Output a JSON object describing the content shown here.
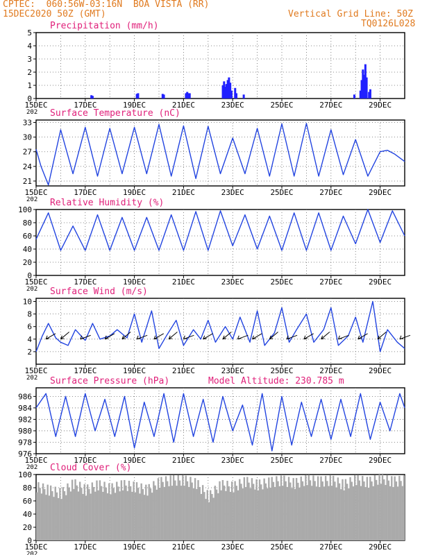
{
  "header": {
    "line1": "CPTEC:  060:56W-03:16N  BOA VISTA (RR)",
    "line2": "15DEC2020 50Z (GMT)",
    "grid_note": "Vertical Grid Line: 50Z",
    "code": "TQ0126L028"
  },
  "x_ticks": [
    "15DEC",
    "17DEC",
    "19DEC",
    "21DEC",
    "23DEC",
    "25DEC",
    "27DEC",
    "29DEC"
  ],
  "year_fragment": "202",
  "chart_data": [
    {
      "type": "bar",
      "title": "Precipitation (mm/h)",
      "ylim": [
        0,
        5
      ],
      "yticks": [
        "0",
        "1",
        "2",
        "3",
        "4",
        "5"
      ],
      "x_range_days": [
        0,
        15
      ],
      "color": "#2020ff",
      "series": [
        {
          "name": "precipitation",
          "x": [
            2.25,
            2.3,
            4.1,
            4.15,
            5.15,
            5.2,
            6.1,
            6.15,
            6.2,
            6.25,
            7.6,
            7.65,
            7.7,
            7.75,
            7.8,
            7.85,
            7.9,
            7.95,
            8.1,
            8.15,
            8.45,
            12.95,
            13.2,
            13.25,
            13.3,
            13.35,
            13.4,
            13.45,
            13.55,
            13.6
          ],
          "values": [
            0.25,
            0.2,
            0.35,
            0.4,
            0.35,
            0.3,
            0.4,
            0.5,
            0.4,
            0.4,
            1.0,
            1.3,
            0.9,
            1.1,
            1.4,
            1.6,
            1.2,
            0.6,
            0.8,
            0.4,
            0.3,
            0.3,
            0.6,
            1.4,
            2.2,
            1.8,
            2.6,
            1.6,
            0.5,
            0.7
          ]
        }
      ]
    },
    {
      "type": "line",
      "title": "Surface Temperature (nC)",
      "ylim": [
        20,
        33.5
      ],
      "yticks": [
        "21",
        "24",
        "27",
        "30",
        "33"
      ],
      "x_range_days": [
        0,
        15
      ],
      "color": "#2244e0",
      "series": [
        {
          "name": "temperature",
          "x": [
            0,
            0.2,
            0.5,
            1.0,
            1.5,
            2.0,
            2.5,
            3.0,
            3.5,
            4.0,
            4.5,
            5.0,
            5.5,
            6.0,
            6.5,
            7.0,
            7.5,
            8.0,
            8.5,
            9.0,
            9.5,
            10.0,
            10.5,
            11.0,
            11.5,
            12.0,
            12.5,
            13.0,
            13.5,
            14.0,
            14.3,
            14.6,
            15.0
          ],
          "values": [
            27.5,
            24,
            20.2,
            31.5,
            22.5,
            32.0,
            22.0,
            31.8,
            22.5,
            32.0,
            22.5,
            32.6,
            22.0,
            32.3,
            21.5,
            32.2,
            22.5,
            29.8,
            22.5,
            31.8,
            22.0,
            32.7,
            22.0,
            32.8,
            22.0,
            31.5,
            22.3,
            29.5,
            22.0,
            27.0,
            27.3,
            26.5,
            25.0
          ]
        }
      ]
    },
    {
      "type": "line",
      "title": "Relative Humidity (%)",
      "ylim": [
        0,
        100
      ],
      "yticks": [
        "0",
        "20",
        "40",
        "60",
        "80",
        "100"
      ],
      "x_range_days": [
        0,
        15
      ],
      "color": "#2244e0",
      "series": [
        {
          "name": "humidity",
          "x": [
            0,
            0.5,
            1.0,
            1.5,
            2.0,
            2.5,
            3.0,
            3.5,
            4.0,
            4.5,
            5.0,
            5.5,
            6.0,
            6.5,
            7.0,
            7.5,
            8.0,
            8.5,
            9.0,
            9.5,
            10.0,
            10.5,
            11.0,
            11.5,
            12.0,
            12.5,
            13.0,
            13.5,
            14.0,
            14.5,
            15.0
          ],
          "values": [
            55,
            95,
            38,
            75,
            38,
            92,
            38,
            88,
            38,
            88,
            38,
            92,
            38,
            97,
            38,
            98,
            45,
            92,
            40,
            90,
            38,
            95,
            38,
            95,
            38,
            90,
            48,
            100,
            50,
            98,
            60
          ]
        }
      ]
    },
    {
      "type": "line",
      "title": "Surface Wind (m/s)",
      "ylim": [
        0,
        10.5
      ],
      "yticks": [
        "2",
        "4",
        "6",
        "8",
        "10"
      ],
      "x_range_days": [
        0,
        15
      ],
      "color": "#2244e0",
      "series": [
        {
          "name": "wind_speed",
          "x": [
            0,
            0.25,
            0.5,
            0.8,
            1.0,
            1.3,
            1.6,
            2.0,
            2.3,
            2.6,
            3.0,
            3.3,
            3.7,
            4.0,
            4.3,
            4.7,
            5.0,
            5.3,
            5.7,
            6.0,
            6.4,
            6.7,
            7.0,
            7.3,
            7.7,
            8.0,
            8.3,
            8.7,
            9.0,
            9.3,
            9.7,
            10.0,
            10.3,
            10.6,
            11.0,
            11.3,
            11.7,
            12.0,
            12.3,
            12.7,
            13.0,
            13.3,
            13.7,
            14.0,
            14.3,
            14.7,
            15.0
          ],
          "values": [
            2,
            4.5,
            6.5,
            4.2,
            3.5,
            3.0,
            5.5,
            3.8,
            6.5,
            4.0,
            4.5,
            5.5,
            4.2,
            8.0,
            3.5,
            8.5,
            2.5,
            4.5,
            7.0,
            3.0,
            5.5,
            4.0,
            7.0,
            3.5,
            6.0,
            4.0,
            7.5,
            3.5,
            8.5,
            3.0,
            5.0,
            9.0,
            3.5,
            5.5,
            8.0,
            3.5,
            5.5,
            9.0,
            3.0,
            4.5,
            7.5,
            3.5,
            10.0,
            2.0,
            5.5,
            3.5,
            2.5
          ]
        },
        {
          "name": "wind_direction_arrows",
          "x": [
            0.4,
            1.0,
            1.8,
            2.8,
            3.5,
            4.1,
            4.8,
            5.4,
            6.0,
            6.8,
            7.6,
            8.2,
            8.8,
            9.5,
            10.2,
            10.9,
            11.6,
            12.3,
            13.1,
            13.9,
            14.8
          ],
          "values": [
            4,
            4,
            4,
            4,
            4,
            4,
            4,
            4,
            4,
            4,
            4,
            4,
            4,
            4,
            4,
            4,
            4,
            4,
            4,
            4,
            4
          ]
        }
      ]
    },
    {
      "type": "line",
      "title": "Surface Pressure (hPa)",
      "annotation": "Model Altitude: 230.785 m",
      "ylim": [
        976,
        987.5
      ],
      "yticks": [
        "976",
        "978",
        "980",
        "982",
        "984",
        "986"
      ],
      "x_range_days": [
        0,
        15
      ],
      "color": "#2244e0",
      "series": [
        {
          "name": "pressure",
          "x": [
            0,
            0.4,
            0.8,
            1.2,
            1.6,
            2.0,
            2.4,
            2.8,
            3.2,
            3.6,
            4.0,
            4.4,
            4.8,
            5.2,
            5.6,
            6.0,
            6.4,
            6.8,
            7.2,
            7.6,
            8.0,
            8.4,
            8.8,
            9.2,
            9.6,
            10.0,
            10.4,
            10.8,
            11.2,
            11.6,
            12.0,
            12.4,
            12.8,
            13.2,
            13.6,
            14.0,
            14.4,
            14.8,
            15.0
          ],
          "values": [
            984,
            986.5,
            979,
            986,
            979,
            986.5,
            980,
            985.5,
            979,
            986,
            977,
            985,
            979,
            986.5,
            978,
            986.5,
            979,
            985.5,
            978,
            986,
            980,
            984.5,
            977.5,
            986.5,
            976.5,
            986,
            977.5,
            985,
            979,
            985.5,
            978.5,
            985.5,
            979,
            986.5,
            978.5,
            985,
            980,
            986.5,
            984
          ]
        }
      ]
    },
    {
      "type": "area",
      "title": "Cloud Cover (%)",
      "ylim": [
        0,
        100
      ],
      "yticks": [
        "0",
        "20",
        "40",
        "60",
        "80",
        "100"
      ],
      "x_range_days": [
        0,
        15
      ],
      "color": "#aaaaaa",
      "series": [
        {
          "name": "cloud_cover",
          "x": [
            0,
            0.5,
            1.0,
            1.5,
            2.0,
            2.5,
            3.0,
            3.5,
            4.0,
            4.5,
            5.0,
            5.5,
            6.0,
            6.5,
            7.0,
            7.5,
            8.0,
            8.5,
            9.0,
            9.5,
            10.0,
            10.5,
            11.0,
            11.5,
            12.0,
            12.5,
            13.0,
            13.5,
            14.0,
            14.5,
            15.0
          ],
          "values": [
            85,
            80,
            75,
            90,
            80,
            88,
            82,
            88,
            85,
            80,
            92,
            95,
            95,
            90,
            70,
            88,
            85,
            93,
            88,
            92,
            95,
            90,
            96,
            93,
            95,
            88,
            96,
            92,
            98,
            93,
            95
          ]
        }
      ]
    }
  ]
}
